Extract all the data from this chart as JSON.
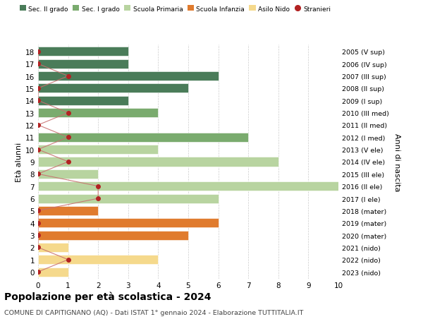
{
  "ages": [
    18,
    17,
    16,
    15,
    14,
    13,
    12,
    11,
    10,
    9,
    8,
    7,
    6,
    5,
    4,
    3,
    2,
    1,
    0
  ],
  "right_labels": [
    "2005 (V sup)",
    "2006 (IV sup)",
    "2007 (III sup)",
    "2008 (II sup)",
    "2009 (I sup)",
    "2010 (III med)",
    "2011 (II med)",
    "2012 (I med)",
    "2013 (V ele)",
    "2014 (IV ele)",
    "2015 (III ele)",
    "2016 (II ele)",
    "2017 (I ele)",
    "2018 (mater)",
    "2019 (mater)",
    "2020 (mater)",
    "2021 (nido)",
    "2022 (nido)",
    "2023 (nido)"
  ],
  "bar_values": [
    3,
    3,
    6,
    5,
    3,
    4,
    0,
    7,
    4,
    8,
    2,
    10,
    6,
    2,
    6,
    5,
    1,
    4,
    1
  ],
  "bar_colors": [
    "#4a7c59",
    "#4a7c59",
    "#4a7c59",
    "#4a7c59",
    "#4a7c59",
    "#7aab6e",
    "#7aab6e",
    "#7aab6e",
    "#b8d4a0",
    "#b8d4a0",
    "#b8d4a0",
    "#b8d4a0",
    "#b8d4a0",
    "#e07b2e",
    "#e07b2e",
    "#e07b2e",
    "#f5d98c",
    "#f5d98c",
    "#f5d98c"
  ],
  "stranieri_values": [
    0,
    0,
    1,
    0,
    0,
    1,
    0,
    1,
    0,
    1,
    0,
    2,
    2,
    0,
    0,
    0,
    0,
    1,
    0
  ],
  "title": "Popolazione per età scolastica - 2024",
  "subtitle": "COMUNE DI CAPITIGNANO (AQ) - Dati ISTAT 1° gennaio 2024 - Elaborazione TUTTITALIA.IT",
  "ylabel": "Età alunni",
  "right_ylabel": "Anni di nascita",
  "xlim": [
    0,
    10
  ],
  "xticks": [
    0,
    1,
    2,
    3,
    4,
    5,
    6,
    7,
    8,
    9,
    10
  ],
  "legend_labels": [
    "Sec. II grado",
    "Sec. I grado",
    "Scuola Primaria",
    "Scuola Infanzia",
    "Asilo Nido",
    "Stranieri"
  ],
  "legend_colors": [
    "#4a7c59",
    "#7aab6e",
    "#b8d4a0",
    "#e07b2e",
    "#f5d98c",
    "#b22222"
  ],
  "bg_color": "#ffffff",
  "bar_height": 0.75,
  "stranieri_color": "#b22222",
  "stranieri_line_color": "#c87070"
}
